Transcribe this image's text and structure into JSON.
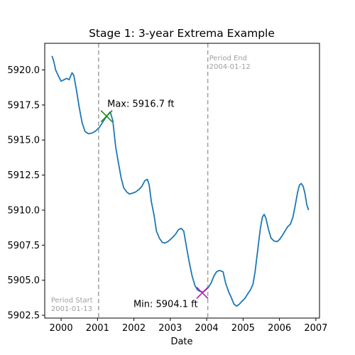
{
  "chart_data": {
    "type": "line",
    "title": "Stage 1: 3-year Extrema Example",
    "xlabel": "Date",
    "ylabel": "",
    "xlim": [
      1999.55,
      2007.1
    ],
    "ylim": [
      5902.3,
      5921.9
    ],
    "grid": false,
    "x_ticks": [
      2000,
      2001,
      2002,
      2003,
      2004,
      2005,
      2006,
      2007
    ],
    "x_tick_labels": [
      "2000",
      "2001",
      "2002",
      "2003",
      "2004",
      "2005",
      "2006",
      "2007"
    ],
    "y_ticks": [
      5902.5,
      5905.0,
      5907.5,
      5910.0,
      5912.5,
      5915.0,
      5917.5,
      5920.0
    ],
    "y_tick_labels": [
      "5902.5",
      "5905.0",
      "5907.5",
      "5910.0",
      "5912.5",
      "5915.0",
      "5917.5",
      "5920.0"
    ],
    "series": [
      {
        "color": "#1f77b4",
        "points": [
          [
            1999.75,
            5921.0
          ],
          [
            1999.8,
            5920.6
          ],
          [
            1999.85,
            5920.0
          ],
          [
            1999.92,
            5919.6
          ],
          [
            2000.0,
            5919.2
          ],
          [
            2000.08,
            5919.3
          ],
          [
            2000.15,
            5919.4
          ],
          [
            2000.22,
            5919.3
          ],
          [
            2000.3,
            5919.8
          ],
          [
            2000.35,
            5919.6
          ],
          [
            2000.42,
            5918.6
          ],
          [
            2000.5,
            5917.3
          ],
          [
            2000.58,
            5916.2
          ],
          [
            2000.66,
            5915.6
          ],
          [
            2000.75,
            5915.45
          ],
          [
            2000.85,
            5915.5
          ],
          [
            2000.95,
            5915.65
          ],
          [
            2001.05,
            5915.9
          ],
          [
            2001.15,
            5916.3
          ],
          [
            2001.25,
            5916.7
          ],
          [
            2001.35,
            5917.0
          ],
          [
            2001.42,
            5916.4
          ],
          [
            2001.5,
            5914.5
          ],
          [
            2001.58,
            5913.3
          ],
          [
            2001.65,
            5912.3
          ],
          [
            2001.72,
            5911.6
          ],
          [
            2001.8,
            5911.3
          ],
          [
            2001.88,
            5911.15
          ],
          [
            2001.95,
            5911.2
          ],
          [
            2002.05,
            5911.3
          ],
          [
            2002.15,
            5911.5
          ],
          [
            2002.22,
            5911.7
          ],
          [
            2002.3,
            5912.1
          ],
          [
            2002.37,
            5912.2
          ],
          [
            2002.42,
            5911.8
          ],
          [
            2002.48,
            5910.6
          ],
          [
            2002.55,
            5909.7
          ],
          [
            2002.62,
            5908.5
          ],
          [
            2002.7,
            5908.0
          ],
          [
            2002.78,
            5907.7
          ],
          [
            2002.85,
            5907.65
          ],
          [
            2002.93,
            5907.75
          ],
          [
            2003.0,
            5907.9
          ],
          [
            2003.08,
            5908.1
          ],
          [
            2003.15,
            5908.3
          ],
          [
            2003.22,
            5908.6
          ],
          [
            2003.3,
            5908.7
          ],
          [
            2003.37,
            5908.5
          ],
          [
            2003.45,
            5907.3
          ],
          [
            2003.52,
            5906.3
          ],
          [
            2003.6,
            5905.3
          ],
          [
            2003.68,
            5904.6
          ],
          [
            2003.75,
            5904.3
          ],
          [
            2003.82,
            5904.2
          ],
          [
            2003.9,
            5904.15
          ],
          [
            2003.97,
            5904.3
          ],
          [
            2004.05,
            5904.5
          ],
          [
            2004.12,
            5904.8
          ],
          [
            2004.2,
            5905.3
          ],
          [
            2004.27,
            5905.6
          ],
          [
            2004.35,
            5905.7
          ],
          [
            2004.45,
            5905.6
          ],
          [
            2004.52,
            5904.8
          ],
          [
            2004.6,
            5904.2
          ],
          [
            2004.67,
            5903.8
          ],
          [
            2004.75,
            5903.3
          ],
          [
            2004.82,
            5903.15
          ],
          [
            2004.9,
            5903.3
          ],
          [
            2004.97,
            5903.5
          ],
          [
            2005.05,
            5903.7
          ],
          [
            2005.12,
            5904.0
          ],
          [
            2005.2,
            5904.3
          ],
          [
            2005.27,
            5904.7
          ],
          [
            2005.33,
            5905.6
          ],
          [
            2005.4,
            5907.1
          ],
          [
            2005.47,
            5908.6
          ],
          [
            2005.53,
            5909.5
          ],
          [
            2005.58,
            5909.7
          ],
          [
            2005.63,
            5909.4
          ],
          [
            2005.7,
            5908.6
          ],
          [
            2005.77,
            5908.0
          ],
          [
            2005.85,
            5907.8
          ],
          [
            2005.93,
            5907.75
          ],
          [
            2006.0,
            5907.9
          ],
          [
            2006.08,
            5908.2
          ],
          [
            2006.15,
            5908.5
          ],
          [
            2006.22,
            5908.8
          ],
          [
            2006.3,
            5909.0
          ],
          [
            2006.37,
            5909.5
          ],
          [
            2006.43,
            5910.3
          ],
          [
            2006.5,
            5911.3
          ],
          [
            2006.55,
            5911.8
          ],
          [
            2006.6,
            5911.9
          ],
          [
            2006.65,
            5911.7
          ],
          [
            2006.7,
            5911.2
          ],
          [
            2006.75,
            5910.4
          ],
          [
            2006.8,
            5910.0
          ]
        ]
      }
    ],
    "reference_lines": [
      {
        "x": 2001.03,
        "color": "#a0a0a0",
        "style": "dashed",
        "label_line1": "Period Start",
        "label_line2": "2001-01-13",
        "label_position": "bottom"
      },
      {
        "x": 2004.03,
        "color": "#a0a0a0",
        "style": "dashed",
        "label_line1": "Period End",
        "label_line2": "2004-01-12",
        "label_position": "top"
      }
    ],
    "markers": [
      {
        "name": "max",
        "x": 2001.25,
        "y": 5916.7,
        "color": "#1a8a1a",
        "symbol": "x",
        "label": "Max: 5916.7 ft"
      },
      {
        "name": "min",
        "x": 2003.88,
        "y": 5904.1,
        "color": "#b01eb0",
        "symbol": "x",
        "label": "Min: 5904.1 ft"
      }
    ]
  }
}
